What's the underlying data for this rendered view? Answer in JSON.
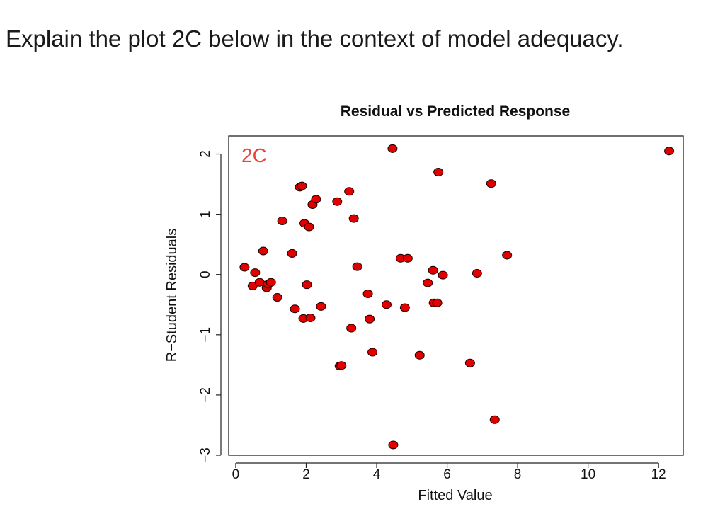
{
  "question": "Explain the plot 2C below in the context of model adequacy.",
  "chart_data": {
    "type": "scatter",
    "title": "Residual vs Predicted Response",
    "panel_label": "2C",
    "xlabel": "Fitted Value",
    "ylabel": "R−Student Residuals",
    "xlim": [
      -0.2,
      12.7
    ],
    "ylim": [
      -3.0,
      2.3
    ],
    "x_ticks": [
      0,
      2,
      4,
      6,
      8,
      10,
      12
    ],
    "x_tick_labels": [
      "0",
      "2",
      "4",
      "6",
      "8",
      "10",
      "12"
    ],
    "y_ticks": [
      -3,
      -2,
      -1,
      0,
      1,
      2
    ],
    "y_tick_labels": [
      "−3",
      "−2",
      "−1",
      "0",
      "1",
      "2"
    ],
    "point_color": "#e00000",
    "panel_label_color": "#e8453c",
    "points": [
      {
        "x": 0.25,
        "y": 0.12
      },
      {
        "x": 0.55,
        "y": 0.03
      },
      {
        "x": 0.48,
        "y": -0.19
      },
      {
        "x": 0.68,
        "y": -0.13
      },
      {
        "x": 0.78,
        "y": 0.39
      },
      {
        "x": 0.88,
        "y": -0.22
      },
      {
        "x": 0.92,
        "y": -0.16
      },
      {
        "x": 1.0,
        "y": -0.13
      },
      {
        "x": 1.18,
        "y": -0.38
      },
      {
        "x": 1.32,
        "y": 0.89
      },
      {
        "x": 1.6,
        "y": 0.35
      },
      {
        "x": 1.68,
        "y": -0.57
      },
      {
        "x": 1.82,
        "y": 1.45
      },
      {
        "x": 1.88,
        "y": 1.47
      },
      {
        "x": 1.92,
        "y": -0.73
      },
      {
        "x": 1.95,
        "y": 0.85
      },
      {
        "x": 2.02,
        "y": -0.17
      },
      {
        "x": 2.08,
        "y": 0.79
      },
      {
        "x": 2.12,
        "y": -0.72
      },
      {
        "x": 2.18,
        "y": 1.16
      },
      {
        "x": 2.28,
        "y": 1.25
      },
      {
        "x": 2.42,
        "y": -0.53
      },
      {
        "x": 2.88,
        "y": 1.21
      },
      {
        "x": 2.95,
        "y": -1.52
      },
      {
        "x": 3.0,
        "y": -1.51
      },
      {
        "x": 3.22,
        "y": 1.38
      },
      {
        "x": 3.28,
        "y": -0.89
      },
      {
        "x": 3.35,
        "y": 0.93
      },
      {
        "x": 3.45,
        "y": 0.13
      },
      {
        "x": 3.75,
        "y": -0.32
      },
      {
        "x": 3.8,
        "y": -0.74
      },
      {
        "x": 3.88,
        "y": -1.29
      },
      {
        "x": 4.28,
        "y": -0.5
      },
      {
        "x": 4.45,
        "y": 2.09
      },
      {
        "x": 4.47,
        "y": -2.83
      },
      {
        "x": 4.68,
        "y": 0.27
      },
      {
        "x": 4.8,
        "y": -0.55
      },
      {
        "x": 4.88,
        "y": 0.27
      },
      {
        "x": 5.22,
        "y": -1.34
      },
      {
        "x": 5.45,
        "y": -0.14
      },
      {
        "x": 5.6,
        "y": 0.07
      },
      {
        "x": 5.62,
        "y": -0.47
      },
      {
        "x": 5.72,
        "y": -0.47
      },
      {
        "x": 5.75,
        "y": 1.7
      },
      {
        "x": 5.88,
        "y": -0.01
      },
      {
        "x": 6.65,
        "y": -1.47
      },
      {
        "x": 6.85,
        "y": 0.02
      },
      {
        "x": 7.25,
        "y": 1.51
      },
      {
        "x": 7.35,
        "y": -2.41
      },
      {
        "x": 7.7,
        "y": 0.32
      },
      {
        "x": 12.3,
        "y": 2.05
      }
    ]
  }
}
